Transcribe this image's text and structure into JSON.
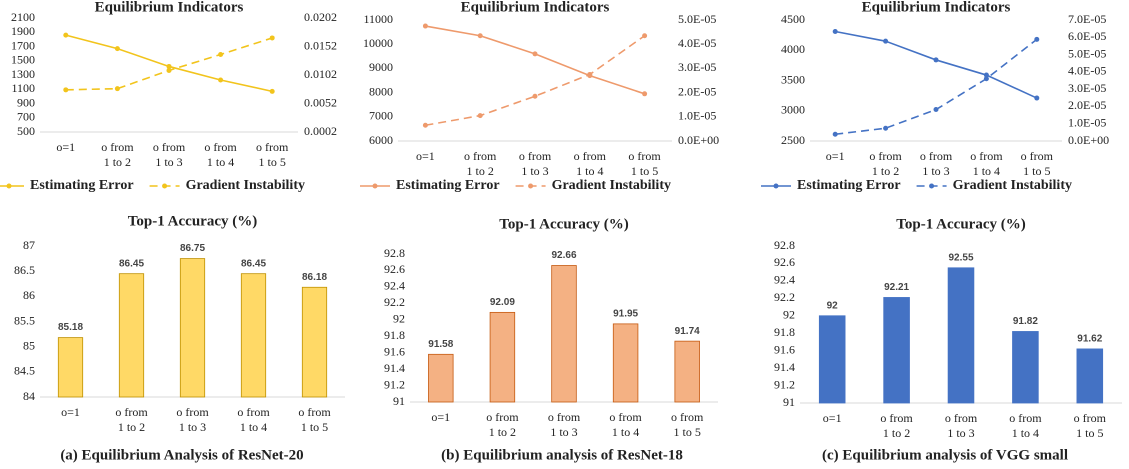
{
  "chart_data": [
    {
      "type": "line",
      "title": "Equilibrium Indicators",
      "categories": [
        "o=1",
        "o from 1 to 2",
        "o from 1 to 3",
        "o from 1 to 4",
        "o from 1 to 5"
      ],
      "ylim": [
        500,
        2100
      ],
      "yticks": [
        500,
        700,
        900,
        1100,
        1300,
        1500,
        1700,
        1900,
        2100
      ],
      "y2lim": [
        0.0002,
        0.0202
      ],
      "y2ticks": [
        0.0002,
        0.0052,
        0.0102,
        0.0152,
        0.0202
      ],
      "series": [
        {
          "name": "Estimating Error",
          "color": "#f2c41c",
          "line_style": "solid",
          "values": [
            1860,
            1670,
            1420,
            1230,
            1070
          ]
        },
        {
          "name": "Gradient Instability",
          "color": "#f2c41c",
          "line_style": "dashed",
          "axis": "y2",
          "values": [
            0.0076,
            0.0078,
            0.011,
            0.0138,
            0.0167
          ]
        }
      ]
    },
    {
      "type": "line",
      "title": "Equilibrium Indicators",
      "categories": [
        "o=1",
        "o from 1 to 2",
        "o from 1 to 3",
        "o from 1 to 4",
        "o from 1 to 5"
      ],
      "ylim": [
        6000,
        11000
      ],
      "yticks": [
        6000,
        7000,
        8000,
        9000,
        10000,
        11000
      ],
      "y2lim": [
        0,
        5e-05
      ],
      "y2ticks": [
        {
          "value": 0,
          "label": "0.0E+00"
        },
        {
          "value": 1e-05,
          "label": "1.0E-05"
        },
        {
          "value": 2e-05,
          "label": "2.0E-05"
        },
        {
          "value": 3e-05,
          "label": "3.0E-05"
        },
        {
          "value": 4e-05,
          "label": "4.0E-05"
        },
        {
          "value": 5e-05,
          "label": "5.0E-05"
        }
      ],
      "series": [
        {
          "name": "Estimating Error",
          "color": "#ee9a6c",
          "line_style": "solid",
          "values": [
            10750,
            10350,
            9600,
            8700,
            7950
          ]
        },
        {
          "name": "Gradient Instability",
          "color": "#ee9a6c",
          "line_style": "dashed",
          "axis": "y2",
          "values": [
            6.5e-06,
            1.05e-05,
            1.85e-05,
            2.75e-05,
            4.35e-05
          ]
        }
      ]
    },
    {
      "type": "line",
      "title": "Equilibrium Indicators",
      "categories": [
        "o=1",
        "o from 1 to 2",
        "o from 1 to 3",
        "o from 1 to 4",
        "o from 1 to 5"
      ],
      "ylim": [
        2500,
        4500
      ],
      "yticks": [
        2500,
        3000,
        3500,
        4000,
        4500
      ],
      "y2lim": [
        0,
        7e-05
      ],
      "y2ticks": [
        {
          "value": 0,
          "label": "0.0E+00"
        },
        {
          "value": 1e-05,
          "label": "1.0E-05"
        },
        {
          "value": 2e-05,
          "label": "2.0E-05"
        },
        {
          "value": 3e-05,
          "label": "3.0E-05"
        },
        {
          "value": 4e-05,
          "label": "4.0E-05"
        },
        {
          "value": 5e-05,
          "label": "5.0E-05"
        },
        {
          "value": 6e-05,
          "label": "6.0E-05"
        },
        {
          "value": 7e-05,
          "label": "7.0E-05"
        }
      ],
      "series": [
        {
          "name": "Estimating Error",
          "color": "#4472c4",
          "line_style": "solid",
          "values": [
            4310,
            4150,
            3840,
            3590,
            3210
          ]
        },
        {
          "name": "Gradient Instability",
          "color": "#4472c4",
          "line_style": "dashed",
          "axis": "y2",
          "values": [
            3.9e-06,
            7.4e-06,
            1.82e-05,
            3.6e-05,
            5.88e-05
          ]
        }
      ]
    },
    {
      "type": "bar",
      "title": "Top-1 Accuracy (%)",
      "categories": [
        "o=1",
        "o from 1 to 2",
        "o from 1 to 3",
        "o from 1 to 4",
        "o from 1 to 5"
      ],
      "values": [
        85.18,
        86.45,
        86.75,
        86.45,
        86.18
      ],
      "color": "#ffd966",
      "edge_color": "#bf9000",
      "ylim": [
        84,
        87
      ],
      "yticks": [
        84,
        84.5,
        85,
        85.5,
        86,
        86.5,
        87
      ]
    },
    {
      "type": "bar",
      "title": "Top-1 Accuracy (%)",
      "categories": [
        "o=1",
        "o from 1 to 2",
        "o from 1 to 3",
        "o from 1 to 4",
        "o from 1 to 5"
      ],
      "values": [
        91.58,
        92.09,
        92.66,
        91.95,
        91.74
      ],
      "color": "#f4b183",
      "edge_color": "#c55a11",
      "ylim": [
        91,
        92.8
      ],
      "yticks": [
        91,
        91.2,
        91.4,
        91.6,
        91.8,
        92,
        92.2,
        92.4,
        92.6,
        92.8
      ]
    },
    {
      "type": "bar",
      "title": "Top-1 Accuracy (%)",
      "categories": [
        "o=1",
        "o from 1 to 2",
        "o from 1 to 3",
        "o from 1 to 4",
        "o from 1 to 5"
      ],
      "values": [
        92,
        92.21,
        92.55,
        91.82,
        91.62
      ],
      "color": "#4472c4",
      "edge_color": "#4472c4",
      "ylim": [
        91,
        92.8
      ],
      "yticks": [
        91,
        91.2,
        91.4,
        91.6,
        91.8,
        92,
        92.2,
        92.4,
        92.6,
        92.8
      ]
    }
  ],
  "captions": [
    "(a) Equilibrium Analysis of ResNet-20",
    "(b) Equilibrium analysis of ResNet-18",
    "(c) Equilibrium analysis of VGG small"
  ]
}
